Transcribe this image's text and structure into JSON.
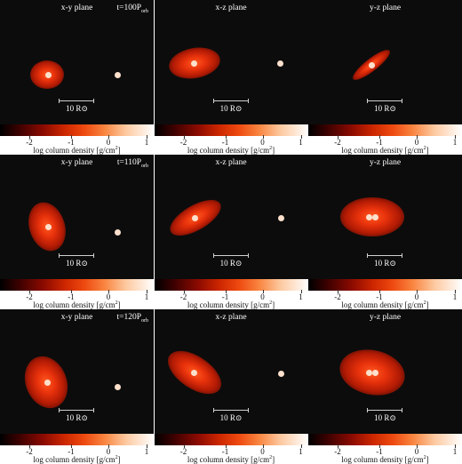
{
  "labels": {
    "xy": "x-y plane",
    "xz": "x-z plane",
    "yz": "y-z plane",
    "scale": "10 R⊙",
    "colorbar": "log column density [g/cm",
    "colorbar_sup": "2",
    "colorbar_end": "]",
    "ticks": [
      "-2",
      "-1",
      "0",
      "1"
    ]
  },
  "times": [
    {
      "t": "t=100P",
      "sub": "orb"
    },
    {
      "t": "t=110P",
      "sub": "orb"
    },
    {
      "t": "t=120P",
      "sub": "orb"
    }
  ],
  "colors": {
    "background": "#0c0c0c",
    "disk_core": "#ff3010",
    "star": "#fde0cc"
  }
}
